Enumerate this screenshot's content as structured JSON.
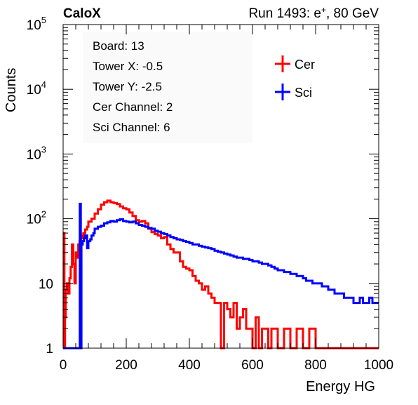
{
  "header": {
    "experiment": "CaloX",
    "run_label": "Run 1493: e",
    "run_sup": "+",
    "run_suffix": ", 80 GeV"
  },
  "info_box": {
    "lines": [
      "Board: 13",
      "Tower X: -0.5",
      "Tower Y: -2.5",
      "Cer Channel: 2",
      "Sci Channel: 6"
    ]
  },
  "chart_data": {
    "type": "line",
    "title": "",
    "xlabel": "Energy HG",
    "ylabel": "Counts",
    "xlim": [
      0,
      1000
    ],
    "ylim": [
      1,
      100000
    ],
    "log_y": true,
    "grid": false,
    "legend_position": "top-right",
    "x_ticks": [
      0,
      200,
      400,
      600,
      800,
      1000
    ],
    "x_tick_labels": [
      "0",
      "200",
      "400",
      "600",
      "800",
      "1000"
    ],
    "y_tick_values": [
      1,
      10,
      100,
      1000,
      10000,
      100000
    ],
    "y_tick_labels": [
      {
        "base": "1",
        "exp": ""
      },
      {
        "base": "10",
        "exp": ""
      },
      {
        "base": "10",
        "exp": "2"
      },
      {
        "base": "10",
        "exp": "3"
      },
      {
        "base": "10",
        "exp": "4"
      },
      {
        "base": "10",
        "exp": "5"
      }
    ],
    "series": [
      {
        "name": "Cer",
        "color": "#ff0000",
        "points": [
          [
            0,
            1
          ],
          [
            2,
            60
          ],
          [
            4,
            1
          ],
          [
            6,
            3
          ],
          [
            8,
            8
          ],
          [
            12,
            10
          ],
          [
            16,
            7
          ],
          [
            20,
            12
          ],
          [
            24,
            18
          ],
          [
            28,
            40
          ],
          [
            32,
            20
          ],
          [
            36,
            10
          ],
          [
            40,
            30
          ],
          [
            44,
            25
          ],
          [
            48,
            40
          ],
          [
            52,
            45
          ],
          [
            56,
            55
          ],
          [
            60,
            50
          ],
          [
            64,
            60
          ],
          [
            70,
            68
          ],
          [
            76,
            75
          ],
          [
            80,
            90
          ],
          [
            90,
            100
          ],
          [
            100,
            120
          ],
          [
            110,
            140
          ],
          [
            120,
            165
          ],
          [
            130,
            180
          ],
          [
            140,
            190
          ],
          [
            150,
            180
          ],
          [
            160,
            175
          ],
          [
            170,
            168
          ],
          [
            180,
            155
          ],
          [
            190,
            145
          ],
          [
            200,
            140
          ],
          [
            210,
            125
          ],
          [
            220,
            110
          ],
          [
            230,
            95
          ],
          [
            240,
            90
          ],
          [
            250,
            92
          ],
          [
            260,
            85
          ],
          [
            270,
            70
          ],
          [
            280,
            62
          ],
          [
            290,
            58
          ],
          [
            300,
            55
          ],
          [
            310,
            50
          ],
          [
            320,
            52
          ],
          [
            330,
            40
          ],
          [
            340,
            34
          ],
          [
            350,
            30
          ],
          [
            360,
            30
          ],
          [
            370,
            22
          ],
          [
            380,
            18
          ],
          [
            390,
            17
          ],
          [
            400,
            16
          ],
          [
            410,
            13
          ],
          [
            420,
            11
          ],
          [
            430,
            10
          ],
          [
            440,
            8
          ],
          [
            450,
            9
          ],
          [
            460,
            7
          ],
          [
            470,
            6
          ],
          [
            480,
            5
          ],
          [
            490,
            5
          ],
          [
            500,
            1
          ],
          [
            510,
            5
          ],
          [
            520,
            4
          ],
          [
            530,
            3
          ],
          [
            540,
            5
          ],
          [
            550,
            2
          ],
          [
            560,
            3
          ],
          [
            570,
            4
          ],
          [
            580,
            2
          ],
          [
            590,
            2
          ],
          [
            600,
            1
          ],
          [
            610,
            3
          ],
          [
            620,
            1
          ],
          [
            630,
            2
          ],
          [
            640,
            2
          ],
          [
            650,
            1
          ],
          [
            660,
            2
          ],
          [
            670,
            2
          ],
          [
            680,
            1
          ],
          [
            700,
            2
          ],
          [
            720,
            1
          ],
          [
            740,
            2
          ],
          [
            760,
            1
          ],
          [
            780,
            2
          ],
          [
            800,
            1
          ],
          [
            820,
            1
          ],
          [
            840,
            1
          ],
          [
            860,
            1
          ],
          [
            880,
            1
          ],
          [
            900,
            1
          ],
          [
            920,
            1
          ],
          [
            940,
            1
          ],
          [
            960,
            1
          ],
          [
            980,
            1
          ],
          [
            1000,
            1
          ]
        ]
      },
      {
        "name": "Sci",
        "color": "#0000ff",
        "points": [
          [
            0,
            1
          ],
          [
            50,
            1
          ],
          [
            53,
            170
          ],
          [
            56,
            1
          ],
          [
            58,
            40
          ],
          [
            62,
            45
          ],
          [
            66,
            50
          ],
          [
            70,
            55
          ],
          [
            76,
            35
          ],
          [
            80,
            45
          ],
          [
            86,
            48
          ],
          [
            90,
            55
          ],
          [
            96,
            60
          ],
          [
            100,
            70
          ],
          [
            110,
            75
          ],
          [
            120,
            78
          ],
          [
            130,
            85
          ],
          [
            140,
            88
          ],
          [
            150,
            92
          ],
          [
            160,
            90
          ],
          [
            170,
            95
          ],
          [
            180,
            98
          ],
          [
            190,
            92
          ],
          [
            200,
            90
          ],
          [
            210,
            88
          ],
          [
            220,
            90
          ],
          [
            230,
            85
          ],
          [
            240,
            80
          ],
          [
            250,
            78
          ],
          [
            260,
            75
          ],
          [
            270,
            72
          ],
          [
            280,
            70
          ],
          [
            290,
            65
          ],
          [
            300,
            63
          ],
          [
            310,
            60
          ],
          [
            320,
            58
          ],
          [
            330,
            55
          ],
          [
            340,
            52
          ],
          [
            350,
            50
          ],
          [
            360,
            48
          ],
          [
            370,
            47
          ],
          [
            380,
            45
          ],
          [
            390,
            44
          ],
          [
            400,
            42
          ],
          [
            410,
            40
          ],
          [
            420,
            40
          ],
          [
            430,
            38
          ],
          [
            440,
            37
          ],
          [
            450,
            36
          ],
          [
            460,
            35
          ],
          [
            470,
            34
          ],
          [
            480,
            32
          ],
          [
            490,
            31
          ],
          [
            500,
            30
          ],
          [
            510,
            29
          ],
          [
            520,
            28
          ],
          [
            530,
            27
          ],
          [
            540,
            26
          ],
          [
            550,
            25
          ],
          [
            560,
            25
          ],
          [
            570,
            24
          ],
          [
            580,
            24
          ],
          [
            590,
            23
          ],
          [
            600,
            22
          ],
          [
            610,
            22
          ],
          [
            620,
            21
          ],
          [
            630,
            20
          ],
          [
            640,
            20
          ],
          [
            650,
            19
          ],
          [
            660,
            18
          ],
          [
            670,
            17
          ],
          [
            680,
            16
          ],
          [
            690,
            16
          ],
          [
            700,
            15
          ],
          [
            710,
            15
          ],
          [
            720,
            14
          ],
          [
            730,
            14
          ],
          [
            740,
            13
          ],
          [
            750,
            13
          ],
          [
            760,
            12
          ],
          [
            770,
            11
          ],
          [
            780,
            11
          ],
          [
            790,
            10
          ],
          [
            800,
            10
          ],
          [
            810,
            10
          ],
          [
            820,
            9
          ],
          [
            830,
            9
          ],
          [
            840,
            8
          ],
          [
            850,
            8
          ],
          [
            860,
            7
          ],
          [
            870,
            7
          ],
          [
            880,
            7
          ],
          [
            890,
            6
          ],
          [
            900,
            6
          ],
          [
            910,
            6
          ],
          [
            920,
            5
          ],
          [
            930,
            5
          ],
          [
            940,
            6
          ],
          [
            950,
            5
          ],
          [
            960,
            5
          ],
          [
            970,
            6
          ],
          [
            980,
            5
          ],
          [
            990,
            5
          ],
          [
            1000,
            5
          ]
        ]
      }
    ]
  }
}
